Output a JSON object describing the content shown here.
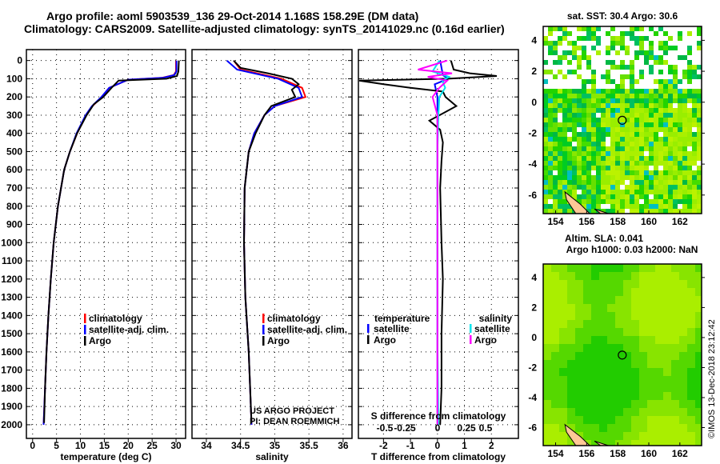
{
  "header": {
    "line1": "Argo profile: aoml 5903539_136 29-Oct-2014 1.168S 158.29E (DM data)",
    "line2": "Climatology: CARS2009. Satellite-adjusted climatology: synTS_20141029.nc (0.16d earlier)"
  },
  "colors": {
    "climatology": "#ff0000",
    "satellite": "#0000ff",
    "argo": "#000000",
    "sal_satellite": "#00e5ee",
    "sal_argo": "#ff00ff",
    "land": "#ffc896"
  },
  "chart_data": [
    {
      "type": "line",
      "name": "temperature-profile",
      "xlabel": "temperature (deg C)",
      "xlim": [
        -1.3,
        32
      ],
      "xticks": [
        0,
        5,
        10,
        15,
        20,
        25,
        30
      ],
      "ylim": [
        2075,
        -60
      ],
      "yticks": [
        0,
        100,
        200,
        300,
        400,
        500,
        600,
        700,
        800,
        900,
        1000,
        1100,
        1200,
        1300,
        1400,
        1500,
        1600,
        1700,
        1800,
        1900,
        2000
      ],
      "legend": [
        "climatology",
        "satellite-adj. clim.",
        "Argo"
      ],
      "series": [
        {
          "name": "climatology",
          "depth": [
            0,
            60,
            80,
            95,
            105,
            150,
            200,
            250,
            300,
            400,
            500,
            600,
            800,
            1000,
            1200,
            1400,
            1600,
            1800,
            2000
          ],
          "values": [
            30,
            30,
            29.5,
            27,
            20,
            16,
            14.5,
            12.5,
            11.2,
            9.3,
            7.8,
            6.6,
            5.3,
            4.4,
            3.8,
            3.3,
            2.9,
            2.6,
            2.3
          ]
        },
        {
          "name": "satellite-adj. clim.",
          "depth": [
            0,
            60,
            80,
            95,
            105,
            150,
            200,
            250,
            300,
            400,
            500,
            600,
            800,
            1000,
            1200,
            1400,
            1600,
            1800,
            2000
          ],
          "values": [
            30.1,
            30.1,
            29.6,
            27.2,
            20,
            16,
            14.4,
            12.4,
            11.1,
            9.2,
            7.8,
            6.6,
            5.3,
            4.4,
            3.8,
            3.3,
            2.9,
            2.6,
            2.3
          ]
        },
        {
          "name": "Argo",
          "depth": [
            0,
            60,
            85,
            100,
            110,
            150,
            200,
            240,
            300,
            400,
            500,
            600,
            800,
            1000,
            1200,
            1400,
            1600,
            1800,
            1990
          ],
          "values": [
            30.6,
            30.5,
            30.2,
            28,
            18,
            16.5,
            14.8,
            12.8,
            11.3,
            9.3,
            7.8,
            6.6,
            5.3,
            4.4,
            3.8,
            3.3,
            2.9,
            2.6,
            2.4
          ]
        }
      ]
    },
    {
      "type": "line",
      "name": "salinity-profile",
      "xlabel": "salinity",
      "xlim": [
        33.79,
        36.13
      ],
      "xticks": [
        34,
        34.5,
        35,
        35.5,
        36
      ],
      "xticklabels": [
        "34",
        "34.5",
        "35",
        "35.5",
        "36"
      ],
      "ylim": [
        2075,
        -60
      ],
      "legend": [
        "climatology",
        "satellite-adj. clim.",
        "Argo"
      ],
      "annotations": [
        "US ARGO PROJECT",
        "PI: DEAN ROEMMICH"
      ],
      "series": [
        {
          "name": "climatology",
          "depth": [
            0,
            50,
            100,
            150,
            200,
            250,
            300,
            400,
            500,
            700,
            1000,
            1300,
            1600,
            2000
          ],
          "values": [
            34.4,
            34.5,
            35.1,
            35.4,
            35.45,
            35.0,
            34.85,
            34.7,
            34.62,
            34.56,
            34.55,
            34.57,
            34.62,
            34.66
          ]
        },
        {
          "name": "satellite-adj. clim.",
          "depth": [
            0,
            50,
            100,
            150,
            200,
            250,
            300,
            400,
            500,
            700,
            1000,
            1300,
            1600,
            2000
          ],
          "values": [
            34.3,
            34.45,
            35.05,
            35.35,
            35.4,
            35.0,
            34.85,
            34.7,
            34.62,
            34.56,
            34.55,
            34.57,
            34.62,
            34.66
          ]
        },
        {
          "name": "Argo",
          "depth": [
            0,
            40,
            70,
            100,
            130,
            160,
            200,
            250,
            300,
            400,
            500,
            700,
            1000,
            1300,
            1600,
            1990
          ],
          "values": [
            34.4,
            34.5,
            34.9,
            35.25,
            35.35,
            35.25,
            35.3,
            34.95,
            34.85,
            34.72,
            34.62,
            34.56,
            34.55,
            34.57,
            34.62,
            34.66
          ]
        }
      ]
    },
    {
      "type": "line",
      "name": "difference-profile",
      "xlabel": "T difference from climatology",
      "x2label": "S difference from climatology",
      "xlim": [
        -2.93,
        3.0
      ],
      "xticks": [
        -2,
        -1,
        0,
        1,
        2
      ],
      "x2ticks": [
        -0.5,
        -0.25,
        0,
        0.25,
        0.5
      ],
      "x2ticklabels": [
        "-0.5",
        "-0.25",
        "0",
        "0.25",
        "0.5"
      ],
      "ylim": [
        2075,
        -60
      ],
      "legend_temperature": {
        "title": "temperature",
        "items": [
          "satellite",
          "Argo"
        ]
      },
      "legend_salinity": {
        "title": "salinity",
        "items": [
          "satellite",
          "Argo"
        ]
      },
      "series": [
        {
          "name": "T satellite",
          "depth": [
            0,
            80,
            100,
            130,
            200,
            300,
            500,
            1000,
            1500,
            2000
          ],
          "values": [
            0.1,
            0.2,
            0.4,
            -0.1,
            0,
            0,
            0,
            0,
            0,
            0
          ]
        },
        {
          "name": "T Argo",
          "depth": [
            0,
            50,
            70,
            85,
            100,
            110,
            130,
            150,
            170,
            200,
            250,
            290,
            330,
            380,
            450,
            550,
            700,
            1000,
            1200,
            1500,
            1800,
            2000
          ],
          "values": [
            0.5,
            0.6,
            1.2,
            2.2,
            0.4,
            -2.9,
            -2.0,
            -1.0,
            0.2,
            0.3,
            0.7,
            0.2,
            -0.3,
            0.1,
            0.2,
            0.15,
            0.1,
            0.15,
            0.2,
            0.15,
            0.15,
            0.1
          ]
        },
        {
          "name": "S satellite",
          "depth": [
            0,
            60,
            90,
            110,
            150,
            200,
            300,
            500,
            1000,
            1500,
            2000
          ],
          "values": [
            0.02,
            -0.05,
            0.12,
            0.05,
            0.08,
            0.02,
            0.01,
            0,
            0,
            0,
            0.01
          ]
        },
        {
          "name": "S Argo",
          "depth": [
            0,
            50,
            70,
            90,
            110,
            150,
            200,
            300,
            400,
            500,
            1000,
            1500,
            2000
          ],
          "values": [
            0.1,
            -0.2,
            0.15,
            -0.1,
            0.1,
            0.02,
            -0.05,
            0,
            0,
            0,
            0,
            0,
            0
          ]
        }
      ]
    }
  ],
  "maps": [
    {
      "title": "sat. SST: 30.4 Argo: 30.6",
      "lon": [
        153.2,
        163.4
      ],
      "lat": [
        -7.2,
        4.9
      ],
      "xticks": [
        "154",
        "156",
        "158",
        "160",
        "162"
      ],
      "yticks": [
        "4",
        "2",
        "0",
        "-2",
        "-4",
        "-6"
      ],
      "marker": [
        158.29,
        -1.168
      ]
    },
    {
      "title": "Altim. SLA: 0.041",
      "subtitle": "Argo h1000: 0.03 h2000: NaN",
      "lon": [
        153.2,
        163.4
      ],
      "lat": [
        -7.2,
        4.9
      ],
      "xticks": [
        "154",
        "156",
        "158",
        "160",
        "162"
      ],
      "yticks": [
        "4",
        "2",
        "0",
        "-2",
        "-4",
        "-6"
      ],
      "marker": [
        158.29,
        -1.168
      ]
    }
  ],
  "footer": {
    "imos": "©IMOS 13-Dec-2018 23:12:42"
  }
}
